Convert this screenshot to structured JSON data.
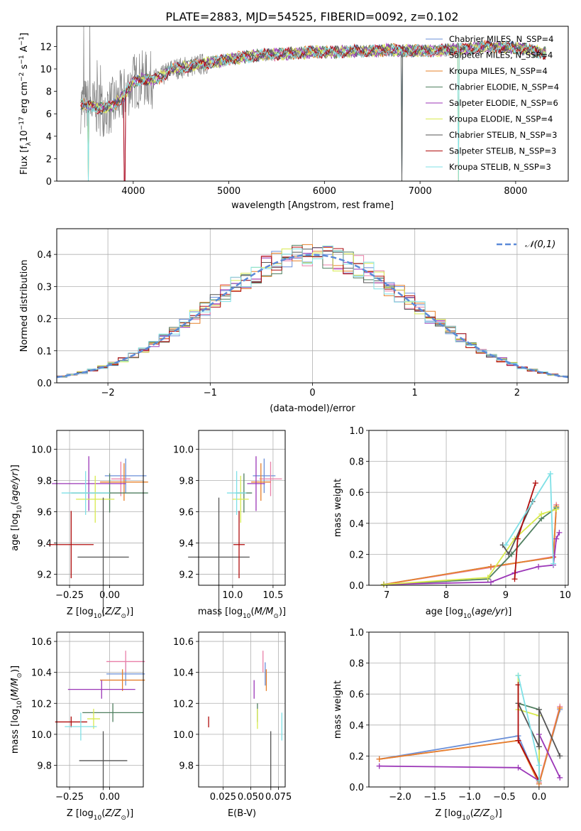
{
  "figure": {
    "title": "PLATE=2883, MJD=54525, FIBERID=0092, z=0.102"
  },
  "colors": {
    "Chabrier MILES": "#6a8fd8",
    "Salpeter MILES": "#e97fa8",
    "Kroupa MILES": "#e6802a",
    "Chabrier ELODIE": "#4f7f5f",
    "Salpeter ELODIE": "#9b36b7",
    "Kroupa ELODIE": "#d8ea4e",
    "Chabrier STELIB": "#555555",
    "Salpeter STELIB": "#b00d0d",
    "Kroupa STELIB": "#7fe0e6",
    "normal": "#5b8ad8",
    "data": "#808080"
  },
  "chart_data": [
    {
      "id": "spectrum",
      "type": "line",
      "xlabel": "wavelength [Angstrom, rest frame]",
      "ylabel": "Flux [f_λ10^{-17} erg cm^{-2} s^{-1} A^{-1}]",
      "xlim": [
        3200,
        8550
      ],
      "ylim": [
        0,
        13.8
      ],
      "xticks": [
        4000,
        5000,
        6000,
        7000,
        8000
      ],
      "yticks": [
        0,
        2,
        4,
        6,
        8,
        10,
        12
      ],
      "legend_position": "right",
      "legend": [
        {
          "label": "Chabrier MILES",
          "nssp": "N_SSP=4"
        },
        {
          "label": "Salpeter MILES",
          "nssp": "N_SSP=4"
        },
        {
          "label": "Kroupa MILES",
          "nssp": "N_SSP=4"
        },
        {
          "label": "Chabrier ELODIE",
          "nssp": "N_SSP=4"
        },
        {
          "label": "Salpeter ELODIE",
          "nssp": "N_SSP=6"
        },
        {
          "label": "Kroupa ELODIE",
          "nssp": "N_SSP=4"
        },
        {
          "label": "Chabrier STELIB",
          "nssp": "N_SSP=3"
        },
        {
          "label": "Salpeter STELIB",
          "nssp": "N_SSP=3"
        },
        {
          "label": "Kroupa STELIB",
          "nssp": "N_SSP=3"
        }
      ],
      "continuum": {
        "x": [
          3450,
          3600,
          3700,
          3800,
          3900,
          4000,
          4100,
          4200,
          4300,
          4400,
          4500,
          4700,
          4900,
          5100,
          5300,
          5500,
          5700,
          5900,
          6100,
          6300,
          6500,
          6700,
          6900,
          7100,
          7300,
          7500,
          7700,
          7900,
          8100,
          8300
        ],
        "y": [
          6.8,
          6.6,
          6.5,
          6.8,
          7.6,
          8.9,
          9.1,
          9.0,
          9.3,
          10.0,
          10.1,
          10.4,
          10.7,
          11.0,
          11.2,
          11.3,
          11.4,
          11.5,
          11.5,
          11.6,
          11.6,
          11.7,
          11.6,
          11.6,
          11.7,
          11.8,
          12.0,
          11.9,
          11.8,
          11.4
        ]
      },
      "model_dips": [
        {
          "x": 3530,
          "y": 0
        },
        {
          "x": 3910,
          "y": 0
        },
        {
          "x": 6810,
          "y": 0
        },
        {
          "x": 7400,
          "y": 0
        }
      ]
    },
    {
      "id": "residuals",
      "type": "line",
      "xlabel": "(data-model)/error",
      "ylabel": "Normed distribution",
      "xlim": [
        -2.5,
        2.5
      ],
      "ylim": [
        0,
        0.48
      ],
      "xticks": [
        -2,
        -1,
        0,
        1,
        2
      ],
      "yticks": [
        0.0,
        0.1,
        0.2,
        0.3,
        0.4
      ],
      "legend_position": "top-right",
      "legend_label": "𝒩(0,1)",
      "bin_width": 0.1
    },
    {
      "id": "age_vs_Z",
      "type": "scatter",
      "xlabel": "Z [log10(Z/Z⊙)]",
      "ylabel": "age [log10(age/yr)]",
      "xlim": [
        -0.33,
        0.21
      ],
      "ylim": [
        9.13,
        10.12
      ],
      "xticks": [
        -0.25,
        0.0
      ],
      "xticklabels": [
        "−0.25",
        "0.00"
      ],
      "yticks": [
        9.2,
        9.4,
        9.6,
        9.8,
        10.0
      ],
      "points": [
        {
          "model": "Chabrier MILES",
          "x": 0.1,
          "xerr": 0.13,
          "y": 9.83,
          "yerr": 0.22
        },
        {
          "model": "Salpeter MILES",
          "x": 0.07,
          "xerr": 0.06,
          "y": 9.81,
          "yerr": 0.22
        },
        {
          "model": "Kroupa MILES",
          "x": 0.09,
          "xerr": 0.15,
          "y": 9.79,
          "yerr": 0.24
        },
        {
          "model": "Chabrier ELODIE",
          "x": 0.0,
          "xerr": 0.24,
          "y": 9.72,
          "yerr": 0.25
        },
        {
          "model": "Salpeter ELODIE",
          "x": -0.13,
          "xerr": 0.23,
          "y": 9.78,
          "yerr": 0.35
        },
        {
          "model": "Kroupa ELODIE",
          "x": -0.09,
          "xerr": 0.12,
          "y": 9.68,
          "yerr": 0.3
        },
        {
          "model": "Chabrier STELIB",
          "x": -0.04,
          "xerr": 0.16,
          "y": 9.31,
          "yerr": 0.76
        },
        {
          "model": "Salpeter STELIB",
          "x": -0.24,
          "xerr": 0.14,
          "y": 9.39,
          "yerr": 0.43
        },
        {
          "model": "Kroupa STELIB",
          "x": -0.15,
          "xerr": 0.15,
          "y": 9.72,
          "yerr": 0.28
        }
      ]
    },
    {
      "id": "age_vs_mass",
      "type": "scatter",
      "xlabel": "mass [log10(M/M⊙)]",
      "ylabel": "",
      "xlim": [
        9.58,
        10.65
      ],
      "ylim": [
        9.13,
        10.12
      ],
      "xticks": [
        10.0,
        10.5
      ],
      "yticks": [
        9.2,
        9.4,
        9.6,
        9.8,
        10.0
      ],
      "points": [
        {
          "model": "Chabrier MILES",
          "x": 10.39,
          "xerr": 0.14,
          "y": 9.83,
          "yerr": 0.22
        },
        {
          "model": "Salpeter MILES",
          "x": 10.47,
          "xerr": 0.14,
          "y": 9.81,
          "yerr": 0.22
        },
        {
          "model": "Kroupa MILES",
          "x": 10.35,
          "xerr": 0.12,
          "y": 9.79,
          "yerr": 0.24
        },
        {
          "model": "Chabrier ELODIE",
          "x": 10.14,
          "xerr": 0.1,
          "y": 9.72,
          "yerr": 0.25
        },
        {
          "model": "Salpeter ELODIE",
          "x": 10.29,
          "xerr": 0.11,
          "y": 9.78,
          "yerr": 0.35
        },
        {
          "model": "Kroupa ELODIE",
          "x": 10.1,
          "xerr": 0.1,
          "y": 9.68,
          "yerr": 0.3
        },
        {
          "model": "Chabrier STELIB",
          "x": 9.83,
          "xerr": 0.38,
          "y": 9.31,
          "yerr": 0.76
        },
        {
          "model": "Salpeter STELIB",
          "x": 10.08,
          "xerr": 0.07,
          "y": 9.39,
          "yerr": 0.43
        },
        {
          "model": "Kroupa STELIB",
          "x": 10.05,
          "xerr": 0.12,
          "y": 9.72,
          "yerr": 0.28
        }
      ]
    },
    {
      "id": "weight_vs_age",
      "type": "line",
      "xlabel": "age [log10(age/yr)]",
      "ylabel": "mass weight",
      "xlim": [
        6.7,
        10.05
      ],
      "ylim": [
        0,
        1
      ],
      "xticks": [
        7,
        8,
        9,
        10
      ],
      "yticks": [
        0.0,
        0.2,
        0.4,
        0.6,
        0.8,
        1.0
      ],
      "series": [
        {
          "model": "Chabrier MILES",
          "x": [
            6.95,
            8.75,
            9.8,
            9.85
          ],
          "y": [
            0.005,
            0.12,
            0.18,
            0.5
          ]
        },
        {
          "model": "Salpeter MILES",
          "x": [
            6.95,
            8.75,
            9.8,
            9.85
          ],
          "y": [
            0.005,
            0.115,
            0.185,
            0.52
          ]
        },
        {
          "model": "Kroupa MILES",
          "x": [
            6.95,
            8.75,
            9.8,
            9.85
          ],
          "y": [
            0.005,
            0.12,
            0.18,
            0.51
          ]
        },
        {
          "model": "Chabrier ELODIE",
          "x": [
            6.95,
            8.7,
            9.1,
            9.6,
            9.85
          ],
          "y": [
            0.005,
            0.04,
            0.2,
            0.43,
            0.5
          ]
        },
        {
          "model": "Salpeter ELODIE",
          "x": [
            6.95,
            8.75,
            9.15,
            9.55,
            9.8,
            9.85,
            9.9
          ],
          "y": [
            0.005,
            0.02,
            0.08,
            0.12,
            0.13,
            0.3,
            0.34
          ]
        },
        {
          "model": "Kroupa ELODIE",
          "x": [
            6.95,
            8.7,
            9.15,
            9.6,
            9.85
          ],
          "y": [
            0.005,
            0.05,
            0.3,
            0.46,
            0.49
          ]
        },
        {
          "model": "Chabrier STELIB",
          "x": [
            8.95,
            9.05,
            9.45
          ],
          "y": [
            0.26,
            0.2,
            0.54
          ]
        },
        {
          "model": "Salpeter STELIB",
          "x": [
            9.15,
            9.2,
            9.5
          ],
          "y": [
            0.04,
            0.3,
            0.66
          ]
        },
        {
          "model": "Kroupa STELIB",
          "x": [
            9.0,
            9.75,
            9.8
          ],
          "y": [
            0.26,
            0.72,
            0.14
          ]
        }
      ]
    },
    {
      "id": "mass_vs_Z",
      "type": "scatter",
      "xlabel": "Z [log10(Z/Z⊙)]",
      "ylabel": "mass [log10(M/M⊙)]",
      "xlim": [
        -0.33,
        0.21
      ],
      "ylim": [
        9.66,
        10.66
      ],
      "xticks": [
        -0.25,
        0.0
      ],
      "xticklabels": [
        "−0.25",
        "0.00"
      ],
      "yticks": [
        9.8,
        10.0,
        10.2,
        10.4,
        10.6
      ],
      "points": [
        {
          "model": "Chabrier MILES",
          "x": 0.1,
          "xerr": 0.12,
          "y": 10.39,
          "yerr": 0.15
        },
        {
          "model": "Salpeter MILES",
          "x": 0.1,
          "xerr": 0.12,
          "y": 10.47,
          "yerr": 0.14
        },
        {
          "model": "Kroupa MILES",
          "x": 0.08,
          "xerr": 0.14,
          "y": 10.35,
          "yerr": 0.14
        },
        {
          "model": "Chabrier ELODIE",
          "x": 0.02,
          "xerr": 0.19,
          "y": 10.14,
          "yerr": 0.12
        },
        {
          "model": "Salpeter ELODIE",
          "x": -0.05,
          "xerr": 0.21,
          "y": 10.29,
          "yerr": 0.12
        },
        {
          "model": "Kroupa ELODIE",
          "x": -0.1,
          "xerr": 0.04,
          "y": 10.1,
          "yerr": 0.13
        },
        {
          "model": "Chabrier STELIB",
          "x": -0.04,
          "xerr": 0.15,
          "y": 9.83,
          "yerr": 0.38
        },
        {
          "model": "Salpeter STELIB",
          "x": -0.24,
          "xerr": 0.1,
          "y": 10.08,
          "yerr": 0.07
        },
        {
          "model": "Kroupa STELIB",
          "x": -0.18,
          "xerr": 0.1,
          "y": 10.05,
          "yerr": 0.18
        }
      ]
    },
    {
      "id": "mass_vs_ebv",
      "type": "scatter",
      "xlabel": "E(B-V)",
      "ylabel": "",
      "xlim": [
        0.003,
        0.081
      ],
      "ylim": [
        9.66,
        10.66
      ],
      "xticks": [
        0.025,
        0.05,
        0.075
      ],
      "xticklabels": [
        "0.025",
        "0.050",
        "0.075"
      ],
      "yticks": [
        9.8,
        10.0,
        10.2,
        10.4,
        10.6
      ],
      "points": [
        {
          "model": "Chabrier MILES",
          "x": 0.063,
          "y": 10.39,
          "yerr": 0.15
        },
        {
          "model": "Salpeter MILES",
          "x": 0.061,
          "y": 10.47,
          "yerr": 0.14
        },
        {
          "model": "Kroupa MILES",
          "x": 0.064,
          "y": 10.35,
          "yerr": 0.14
        },
        {
          "model": "Chabrier ELODIE",
          "x": 0.056,
          "y": 10.14,
          "yerr": 0.12
        },
        {
          "model": "Salpeter ELODIE",
          "x": 0.053,
          "y": 10.29,
          "yerr": 0.12
        },
        {
          "model": "Kroupa ELODIE",
          "x": 0.056,
          "y": 10.1,
          "yerr": 0.13
        },
        {
          "model": "Chabrier STELIB",
          "x": 0.068,
          "y": 9.83,
          "yerr": 0.38
        },
        {
          "model": "Salpeter STELIB",
          "x": 0.012,
          "y": 10.08,
          "yerr": 0.07
        },
        {
          "model": "Kroupa STELIB",
          "x": 0.078,
          "y": 10.05,
          "yerr": 0.18
        }
      ]
    },
    {
      "id": "weight_vs_Z",
      "type": "line",
      "xlabel": "Z [log10(Z/Z⊙)]",
      "ylabel": "mass weight",
      "xlim": [
        -2.45,
        0.42
      ],
      "ylim": [
        0,
        1
      ],
      "xticks": [
        -2.0,
        -1.5,
        -1.0,
        -0.5,
        0.0
      ],
      "xticklabels": [
        "−2.0",
        "−1.5",
        "−1.0",
        "−0.5",
        "0.0"
      ],
      "yticks": [
        0.0,
        0.2,
        0.4,
        0.6,
        0.8,
        1.0
      ],
      "series": [
        {
          "model": "Chabrier MILES",
          "x": [
            -2.3,
            -0.3,
            0.0,
            0.3
          ],
          "y": [
            0.18,
            0.33,
            0.02,
            0.5
          ]
        },
        {
          "model": "Salpeter MILES",
          "x": [
            -2.3,
            -0.3,
            0.0,
            0.3
          ],
          "y": [
            0.18,
            0.3,
            0.03,
            0.52
          ]
        },
        {
          "model": "Kroupa MILES",
          "x": [
            -2.3,
            -0.3,
            0.0,
            0.3
          ],
          "y": [
            0.18,
            0.3,
            0.02,
            0.51
          ]
        },
        {
          "model": "Chabrier ELODIE",
          "x": [
            -0.3,
            -0.3,
            0.0,
            0.0
          ],
          "y": [
            0.66,
            0.54,
            0.5,
            0.04
          ]
        },
        {
          "model": "Salpeter ELODIE",
          "x": [
            -2.3,
            -0.3,
            0.0,
            0.0,
            0.3
          ],
          "y": [
            0.135,
            0.125,
            0.04,
            0.34,
            0.06
          ]
        },
        {
          "model": "Kroupa ELODIE",
          "x": [
            -0.3,
            -0.3,
            0.0,
            0.0
          ],
          "y": [
            0.72,
            0.5,
            0.46,
            0.04
          ]
        },
        {
          "model": "Chabrier STELIB",
          "x": [
            -0.3,
            0.0,
            0.0,
            0.3
          ],
          "y": [
            0.54,
            0.26,
            0.5,
            0.2
          ]
        },
        {
          "model": "Salpeter STELIB",
          "x": [
            -0.3,
            -0.3,
            0.0
          ],
          "y": [
            0.66,
            0.3,
            0.04
          ]
        },
        {
          "model": "Kroupa STELIB",
          "x": [
            -0.3,
            0.0,
            0.0
          ],
          "y": [
            0.72,
            0.14,
            0.04
          ]
        }
      ]
    }
  ]
}
